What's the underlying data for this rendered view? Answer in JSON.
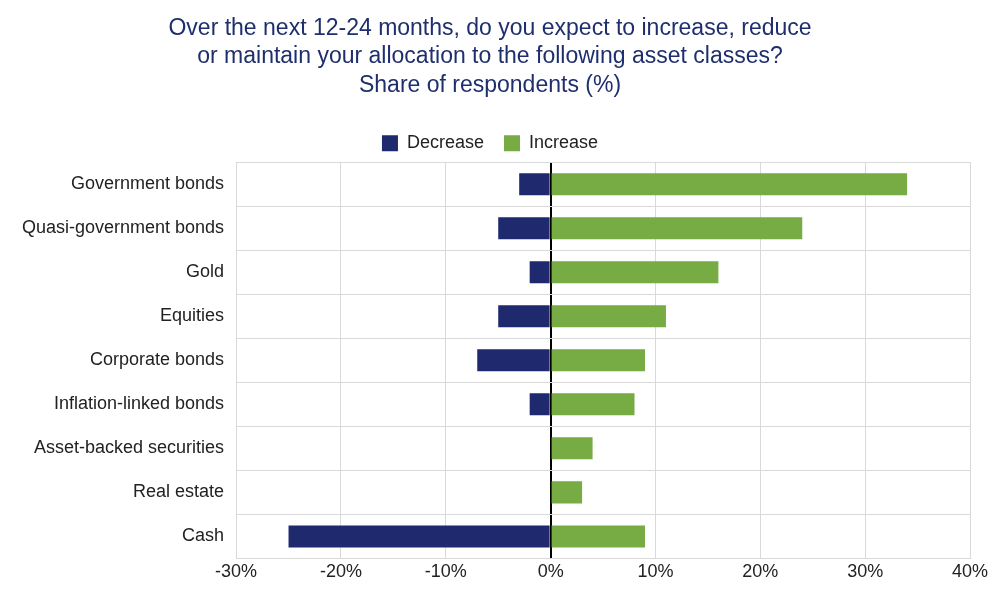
{
  "chart_data": {
    "type": "bar",
    "orientation": "horizontal",
    "stacked": true,
    "title": [
      "Over the next 12-24 months, do you expect to increase, reduce",
      "or maintain your allocation to the following asset classes?"
    ],
    "subtitle": "Share of respondents (%)",
    "categories": [
      "Government bonds",
      "Quasi-government bonds",
      "Gold",
      "Equities",
      "Corporate bonds",
      "Inflation-linked bonds",
      "Asset-backed securities",
      "Real estate",
      "Cash"
    ],
    "series": [
      {
        "name": "Decrease",
        "color": "#1f2a6e",
        "values": [
          -3,
          -5,
          -2,
          -5,
          -7,
          -2,
          0,
          0,
          -25
        ]
      },
      {
        "name": "Increase",
        "color": "#77ab43",
        "values": [
          34,
          24,
          16,
          11,
          9,
          8,
          4,
          3,
          9
        ]
      }
    ],
    "xlim": [
      -30,
      40
    ],
    "xticks": [
      {
        "value": -30,
        "label": "-30%"
      },
      {
        "value": -20,
        "label": "-20%"
      },
      {
        "value": -10,
        "label": "-10%"
      },
      {
        "value": 0,
        "label": "0%"
      },
      {
        "value": 10,
        "label": "10%"
      },
      {
        "value": 20,
        "label": "20%"
      },
      {
        "value": 30,
        "label": "30%"
      },
      {
        "value": 40,
        "label": "40%"
      }
    ],
    "grid": true,
    "legend": "top"
  }
}
